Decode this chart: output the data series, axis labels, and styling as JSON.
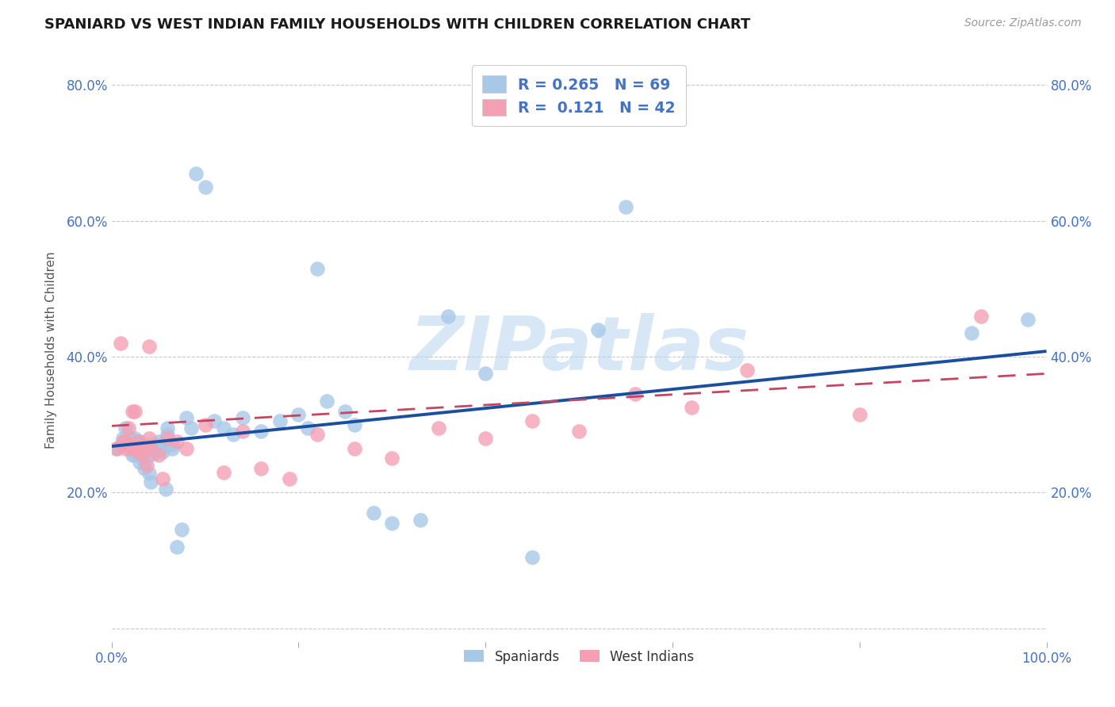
{
  "title": "SPANIARD VS WEST INDIAN FAMILY HOUSEHOLDS WITH CHILDREN CORRELATION CHART",
  "source": "Source: ZipAtlas.com",
  "ylabel": "Family Households with Children",
  "xlim": [
    0.0,
    1.0
  ],
  "ylim": [
    -0.02,
    0.84
  ],
  "spaniard_R": "0.265",
  "spaniard_N": "69",
  "westindian_R": "0.121",
  "westindian_N": "42",
  "spaniard_color": "#a8c8e8",
  "westindian_color": "#f4a0b4",
  "spaniard_line_color": "#1a4fa0",
  "westindian_line_color": "#d04060",
  "label_color": "#4472c4",
  "background_color": "#ffffff",
  "grid_color": "#c8c8c8",
  "watermark": "ZIPatlas",
  "sp_line_start_y": 0.268,
  "sp_line_end_y": 0.408,
  "wi_line_start_y": 0.298,
  "wi_line_end_y": 0.375,
  "spaniard_x": [
    0.005,
    0.01,
    0.012,
    0.015,
    0.015,
    0.018,
    0.02,
    0.02,
    0.022,
    0.022,
    0.025,
    0.025,
    0.025,
    0.028,
    0.028,
    0.03,
    0.03,
    0.03,
    0.03,
    0.03,
    0.033,
    0.033,
    0.035,
    0.035,
    0.038,
    0.04,
    0.04,
    0.04,
    0.04,
    0.042,
    0.045,
    0.048,
    0.05,
    0.05,
    0.052,
    0.055,
    0.058,
    0.06,
    0.06,
    0.065,
    0.065,
    0.07,
    0.075,
    0.08,
    0.085,
    0.09,
    0.1,
    0.11,
    0.12,
    0.13,
    0.14,
    0.16,
    0.18,
    0.2,
    0.21,
    0.22,
    0.23,
    0.25,
    0.26,
    0.28,
    0.3,
    0.33,
    0.36,
    0.4,
    0.45,
    0.52,
    0.55,
    0.92,
    0.98
  ],
  "spaniard_y": [
    0.265,
    0.268,
    0.28,
    0.27,
    0.295,
    0.27,
    0.265,
    0.28,
    0.265,
    0.255,
    0.268,
    0.28,
    0.255,
    0.275,
    0.255,
    0.268,
    0.27,
    0.275,
    0.255,
    0.245,
    0.265,
    0.255,
    0.245,
    0.235,
    0.265,
    0.27,
    0.265,
    0.255,
    0.228,
    0.215,
    0.258,
    0.265,
    0.275,
    0.27,
    0.265,
    0.26,
    0.205,
    0.285,
    0.295,
    0.27,
    0.265,
    0.12,
    0.145,
    0.31,
    0.295,
    0.67,
    0.65,
    0.305,
    0.295,
    0.285,
    0.31,
    0.29,
    0.305,
    0.315,
    0.295,
    0.53,
    0.335,
    0.32,
    0.3,
    0.17,
    0.155,
    0.16,
    0.46,
    0.375,
    0.105,
    0.44,
    0.62,
    0.435,
    0.455
  ],
  "westindian_x": [
    0.005,
    0.01,
    0.012,
    0.015,
    0.015,
    0.018,
    0.02,
    0.022,
    0.022,
    0.025,
    0.025,
    0.028,
    0.028,
    0.03,
    0.033,
    0.035,
    0.038,
    0.04,
    0.04,
    0.042,
    0.05,
    0.055,
    0.06,
    0.07,
    0.08,
    0.1,
    0.12,
    0.14,
    0.16,
    0.19,
    0.22,
    0.26,
    0.3,
    0.35,
    0.4,
    0.45,
    0.5,
    0.56,
    0.62,
    0.68,
    0.8,
    0.93
  ],
  "westindian_y": [
    0.265,
    0.42,
    0.275,
    0.265,
    0.275,
    0.295,
    0.27,
    0.265,
    0.32,
    0.268,
    0.32,
    0.26,
    0.275,
    0.265,
    0.255,
    0.265,
    0.24,
    0.28,
    0.415,
    0.265,
    0.255,
    0.22,
    0.28,
    0.275,
    0.265,
    0.3,
    0.23,
    0.29,
    0.235,
    0.22,
    0.285,
    0.265,
    0.25,
    0.295,
    0.28,
    0.305,
    0.29,
    0.345,
    0.325,
    0.38,
    0.315,
    0.46
  ]
}
